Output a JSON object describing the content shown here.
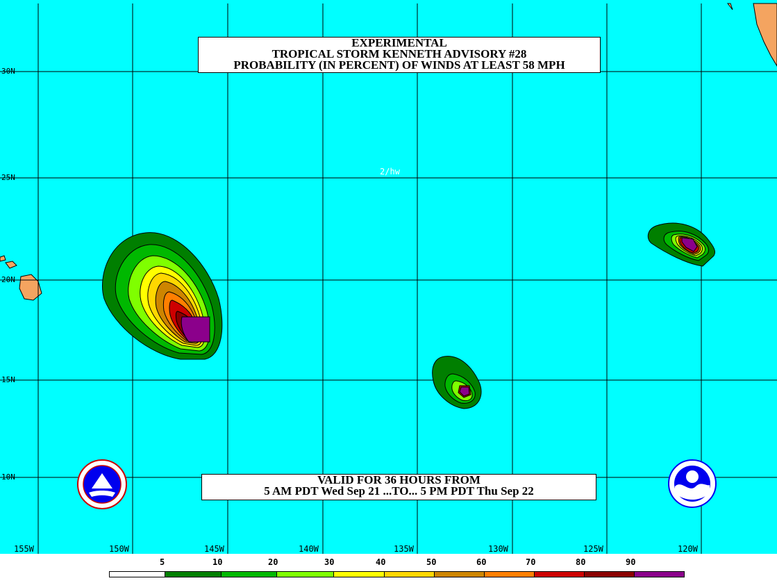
{
  "title": {
    "line1": "EXPERIMENTAL",
    "line2": "TROPICAL STORM KENNETH ADVISORY #28",
    "line3": "PROBABILITY (IN PERCENT) OF WINDS AT LEAST 58 MPH"
  },
  "valid": {
    "line1": "VALID FOR 36 HOURS FROM",
    "line2": "5 AM PDT Wed Sep 21 ...TO... 5 PM PDT Thu Sep 22"
  },
  "credit": "2/hw",
  "lat_labels": [
    "30N",
    "25N",
    "20N",
    "15N",
    "10N"
  ],
  "lon_labels": [
    "155W",
    "150W",
    "145W",
    "140W",
    "135W",
    "130W",
    "125W",
    "120W"
  ],
  "legend": {
    "labels": [
      "5",
      "10",
      "20",
      "30",
      "40",
      "50",
      "60",
      "70",
      "80",
      "90"
    ],
    "colors": [
      "#ffffff",
      "#007f00",
      "#00b800",
      "#7fff00",
      "#ffff00",
      "#ffd700",
      "#cd8500",
      "#ff7f00",
      "#cd0000",
      "#8b0000",
      "#8b008b"
    ]
  },
  "colors": {
    "ocean": "#00ffff",
    "land": "#f4a460",
    "grid": "#000000"
  },
  "icons": {
    "left_logo": "nws-seal-icon",
    "right_logo": "noaa-logo-icon"
  }
}
